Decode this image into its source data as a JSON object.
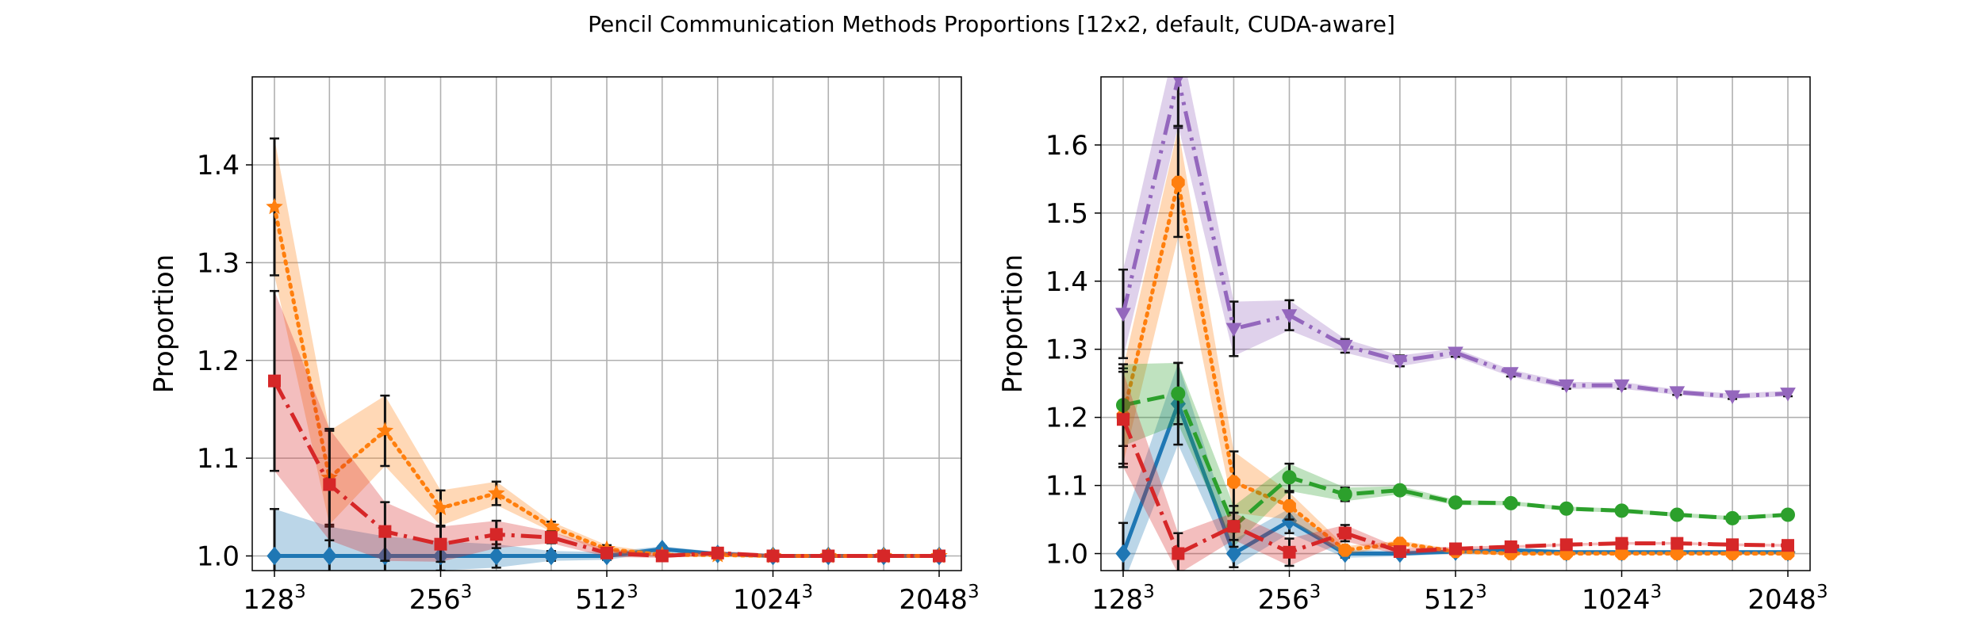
{
  "title": "Pencil Communication Methods Proportions [12x2, default, CUDA-aware]",
  "colors": {
    "blue": "#1f77b4",
    "orange": "#ff7f0e",
    "green": "#2ca02c",
    "red": "#d62728",
    "purple": "#9467bd"
  },
  "chart_data": [
    {
      "type": "line",
      "ylabel": "Proportion",
      "x": [
        128,
        161,
        203,
        256,
        323,
        406,
        512,
        645,
        813,
        1024,
        1290,
        1625,
        2048
      ],
      "xtick_labels": [
        {
          "base": "128",
          "exp": "3",
          "x": 128
        },
        {
          "base": "256",
          "exp": "3",
          "x": 256
        },
        {
          "base": "512",
          "exp": "3",
          "x": 512
        },
        {
          "base": "1024",
          "exp": "3",
          "x": 1024
        },
        {
          "base": "2048",
          "exp": "3",
          "x": 2048
        }
      ],
      "yticks": [
        1.0,
        1.1,
        1.2,
        1.3,
        1.4
      ],
      "ylim": [
        0.985,
        1.49
      ],
      "xscale": "log",
      "grid": true,
      "series": [
        {
          "color": "blue",
          "style": "solid",
          "marker": "diamond",
          "values": [
            1.0,
            1.0,
            1.0,
            1.0,
            1.0,
            1.0,
            1.0,
            1.007,
            1.002,
            1.0,
            1.0,
            1.0,
            1.0
          ],
          "err": [
            0.048,
            0.03,
            0.02,
            0.015,
            0.012,
            0.005,
            0.004,
            0.003,
            0.002,
            0.002,
            0.002,
            0.002,
            0.002
          ]
        },
        {
          "color": "orange",
          "style": "dotted",
          "marker": "star",
          "values": [
            1.357,
            1.08,
            1.128,
            1.049,
            1.064,
            1.03,
            1.007,
            1.001,
            1.001,
            1.0,
            1.0,
            1.0,
            1.0
          ],
          "err": [
            0.07,
            0.048,
            0.036,
            0.018,
            0.012,
            0.005,
            0.004,
            0.002,
            0.002,
            0.002,
            0.002,
            0.002,
            0.002
          ]
        },
        {
          "color": "red",
          "style": "dashdot",
          "marker": "square",
          "values": [
            1.179,
            1.073,
            1.025,
            1.012,
            1.022,
            1.019,
            1.003,
            1.0,
            1.003,
            1.0,
            1.0,
            1.0,
            1.0
          ],
          "err": [
            0.092,
            0.057,
            0.03,
            0.018,
            0.014,
            0.006,
            0.004,
            0.002,
            0.002,
            0.002,
            0.002,
            0.002,
            0.002
          ]
        }
      ]
    },
    {
      "type": "line",
      "ylabel": "Proportion",
      "x": [
        128,
        161,
        203,
        256,
        323,
        406,
        512,
        645,
        813,
        1024,
        1290,
        1625,
        2048
      ],
      "xtick_labels": [
        {
          "base": "128",
          "exp": "3",
          "x": 128
        },
        {
          "base": "256",
          "exp": "3",
          "x": 256
        },
        {
          "base": "512",
          "exp": "3",
          "x": 512
        },
        {
          "base": "1024",
          "exp": "3",
          "x": 1024
        },
        {
          "base": "2048",
          "exp": "3",
          "x": 2048
        }
      ],
      "yticks": [
        1.0,
        1.1,
        1.2,
        1.3,
        1.4,
        1.5,
        1.6
      ],
      "ylim": [
        0.975,
        1.7
      ],
      "xscale": "log",
      "grid": true,
      "series": [
        {
          "color": "blue",
          "style": "solid",
          "marker": "diamond",
          "values": [
            1.0,
            1.22,
            1.0,
            1.048,
            1.0,
            1.0,
            1.003,
            1.005,
            1.002,
            1.002,
            1.002,
            1.002,
            1.002
          ],
          "err": [
            0.045,
            0.06,
            0.02,
            0.018,
            0.006,
            0.004,
            0.003,
            0.002,
            0.002,
            0.002,
            0.002,
            0.002,
            0.002
          ]
        },
        {
          "color": "orange",
          "style": "dotted",
          "marker": "octagon",
          "values": [
            1.202,
            1.545,
            1.105,
            1.07,
            1.005,
            1.015,
            1.003,
            1.0,
            1.0,
            1.0,
            1.0,
            1.0,
            1.0
          ],
          "err": [
            0.07,
            0.08,
            0.045,
            0.02,
            0.006,
            0.004,
            0.003,
            0.002,
            0.002,
            0.002,
            0.002,
            0.002,
            0.002
          ]
        },
        {
          "color": "green",
          "style": "dashed",
          "marker": "circle",
          "values": [
            1.218,
            1.235,
            1.04,
            1.112,
            1.087,
            1.093,
            1.075,
            1.074,
            1.066,
            1.063,
            1.057,
            1.052,
            1.057
          ],
          "err": [
            0.06,
            0.045,
            0.03,
            0.02,
            0.01,
            0.006,
            0.004,
            0.003,
            0.003,
            0.003,
            0.003,
            0.003,
            0.003
          ]
        },
        {
          "color": "red",
          "style": "dashdot",
          "marker": "square",
          "values": [
            1.197,
            1.0,
            1.04,
            1.002,
            1.03,
            1.003,
            1.007,
            1.01,
            1.013,
            1.015,
            1.015,
            1.013,
            1.012
          ],
          "err": [
            0.07,
            0.03,
            0.02,
            0.02,
            0.012,
            0.005,
            0.003,
            0.002,
            0.002,
            0.002,
            0.002,
            0.002,
            0.002
          ]
        },
        {
          "color": "purple",
          "style": "dashdotdot",
          "marker": "tri_down",
          "values": [
            1.352,
            1.698,
            1.33,
            1.35,
            1.305,
            1.283,
            1.295,
            1.265,
            1.247,
            1.247,
            1.237,
            1.231,
            1.235
          ],
          "err": [
            0.065,
            0.07,
            0.04,
            0.022,
            0.01,
            0.008,
            0.006,
            0.005,
            0.005,
            0.005,
            0.004,
            0.004,
            0.004
          ]
        }
      ]
    }
  ]
}
